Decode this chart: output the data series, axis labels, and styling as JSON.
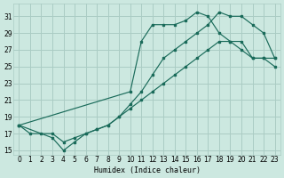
{
  "xlabel": "Humidex (Indice chaleur)",
  "bg_color": "#cce8e0",
  "grid_color": "#aaccc4",
  "line_color": "#1a6b5a",
  "xlim": [
    -0.5,
    23.5
  ],
  "ylim": [
    14.5,
    32.5
  ],
  "xticks": [
    0,
    1,
    2,
    3,
    4,
    5,
    6,
    7,
    8,
    9,
    10,
    11,
    12,
    13,
    14,
    15,
    16,
    17,
    18,
    19,
    20,
    21,
    22,
    23
  ],
  "yticks": [
    15,
    17,
    19,
    21,
    23,
    25,
    27,
    29,
    31
  ],
  "line1_x": [
    0,
    1,
    2,
    3,
    4,
    5,
    6,
    7,
    8,
    9,
    10,
    11,
    12,
    13,
    14,
    15,
    16,
    17,
    18,
    19,
    20,
    21,
    22,
    23
  ],
  "line1_y": [
    18,
    17,
    17,
    17,
    16,
    16.5,
    17,
    17.5,
    18,
    19,
    20,
    21,
    22,
    23,
    24,
    25,
    26,
    27,
    28,
    28,
    27,
    26,
    26,
    25
  ],
  "line2_x": [
    0,
    3,
    4,
    5,
    6,
    7,
    8,
    9,
    10,
    11,
    12,
    13,
    14,
    15,
    16,
    17,
    18,
    19,
    20,
    21,
    22,
    23
  ],
  "line2_y": [
    18,
    16.5,
    15,
    16,
    17,
    17.5,
    18,
    19,
    20.5,
    22,
    24,
    26,
    27,
    28,
    29,
    30,
    31.5,
    31,
    31,
    30,
    29,
    26
  ],
  "line3_x": [
    0,
    10,
    11,
    12,
    13,
    14,
    15,
    16,
    17,
    18,
    19,
    20,
    21,
    22,
    23
  ],
  "line3_y": [
    18,
    22,
    28,
    30,
    30,
    30,
    30.5,
    31.5,
    31,
    29,
    28,
    28,
    26,
    26,
    26
  ]
}
